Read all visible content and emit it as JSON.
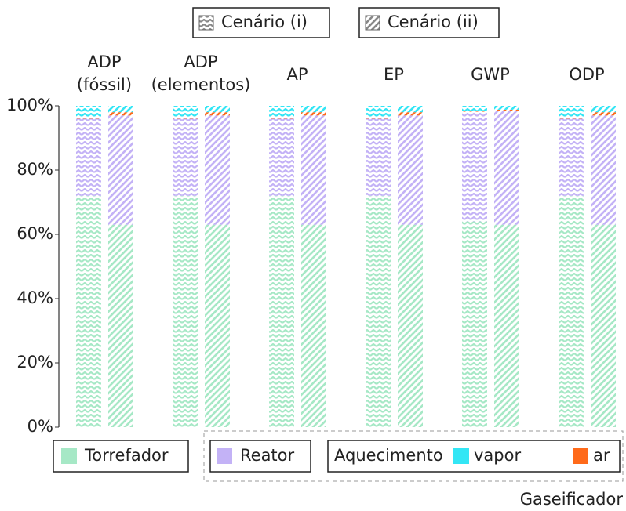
{
  "chart_data": {
    "type": "stacked_bar",
    "categories": [
      "ADP\n(fóssil)",
      "ADP\n(elementos)",
      "AP",
      "EP",
      "GWP",
      "ODP"
    ],
    "scenarios": [
      "Cenário (i)",
      "Cenário (ii)"
    ],
    "series": [
      {
        "name": "Torrefador",
        "color": "#a6e8c6",
        "values": [
          [
            72,
            63
          ],
          [
            72,
            63
          ],
          [
            72,
            63
          ],
          [
            72,
            63
          ],
          [
            64,
            63
          ],
          [
            72,
            63
          ]
        ]
      },
      {
        "name": "Reator",
        "color": "#c3b2f6",
        "values": [
          [
            24,
            34
          ],
          [
            24,
            34
          ],
          [
            24,
            34
          ],
          [
            24,
            34
          ],
          [
            34,
            35.5
          ],
          [
            24,
            34
          ]
        ]
      },
      {
        "name": "ar",
        "color": "#ff6a1a",
        "values": [
          [
            0.5,
            1
          ],
          [
            0.5,
            1
          ],
          [
            0.5,
            1
          ],
          [
            0.5,
            1
          ],
          [
            0.5,
            0.3
          ],
          [
            0.5,
            1
          ]
        ]
      },
      {
        "name": "vapor",
        "color": "#33e6f5",
        "values": [
          [
            3.5,
            2
          ],
          [
            3.5,
            2
          ],
          [
            3.5,
            2
          ],
          [
            3.5,
            2
          ],
          [
            1.5,
            1.2
          ],
          [
            3.5,
            2
          ]
        ]
      }
    ],
    "legend_group_label": "Aquecimento",
    "legend_outer_label": "Gaseificador",
    "ylim": [
      0,
      100
    ],
    "yticks": [
      {
        "value": 0,
        "label": "0%"
      },
      {
        "value": 20,
        "label": "20%"
      },
      {
        "value": 40,
        "label": "40%"
      },
      {
        "value": 60,
        "label": "60%"
      },
      {
        "value": 80,
        "label": "80%"
      },
      {
        "value": 100,
        "label": "100%"
      }
    ],
    "grid": false
  }
}
